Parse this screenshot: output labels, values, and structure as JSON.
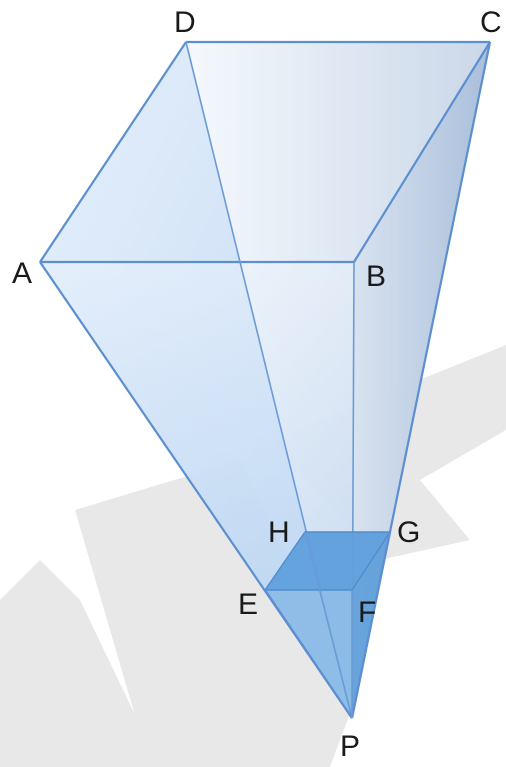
{
  "figure": {
    "labels": {
      "A": "A",
      "B": "B",
      "C": "C",
      "D": "D",
      "E": "E",
      "F": "F",
      "G": "G",
      "H": "H",
      "P": "P"
    },
    "colors": {
      "edge": "#5b8fd0",
      "face_light": "#dce9f8",
      "face_mid": "#a9c8ee",
      "small_square": "#5e9fdc",
      "small_pyramid": "#74addf",
      "watermark": "#e6e6e6",
      "text": "#1a1a1a"
    }
  }
}
